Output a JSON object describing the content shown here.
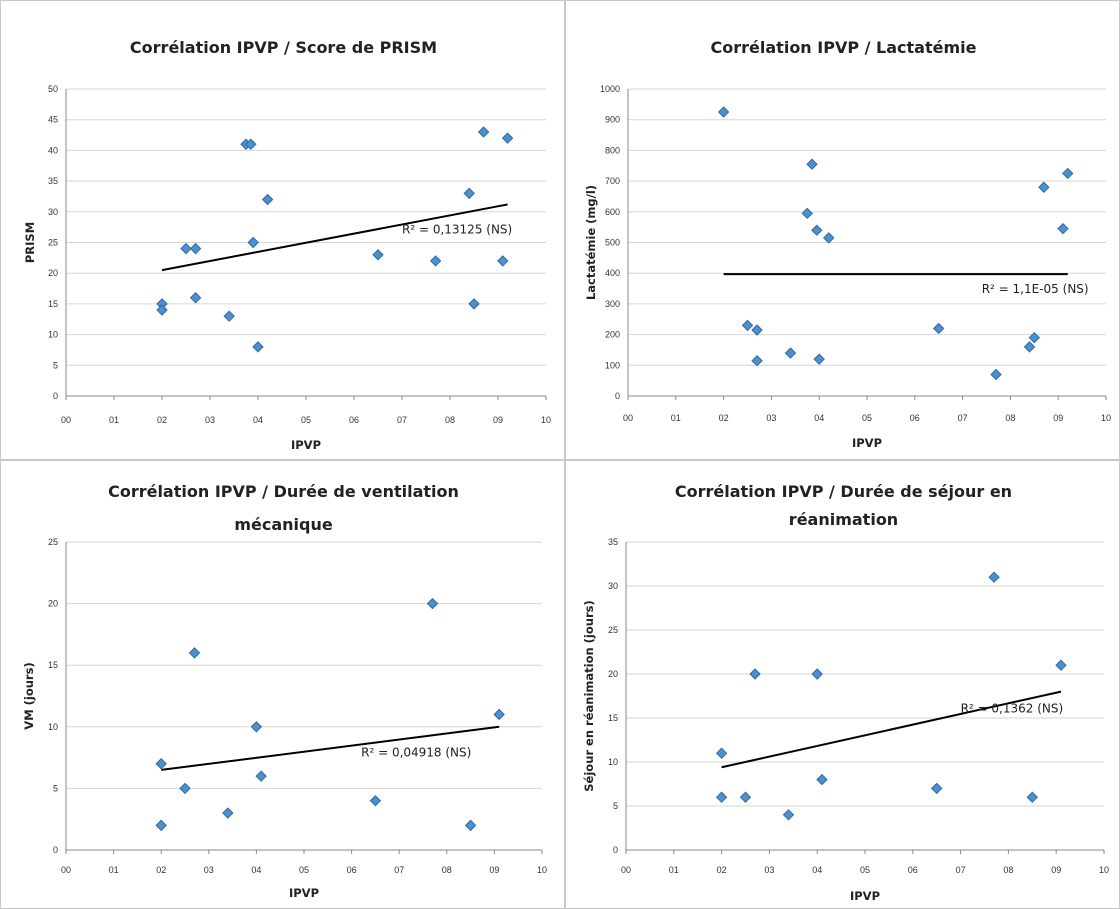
{
  "colors": {
    "marker": "#4f8fcf",
    "marker_edge": "#2f6aa5",
    "grid": "#d6d6d6",
    "trend": "#000000",
    "frame": "#c9c9c9"
  },
  "chart_data": [
    {
      "type": "scatter",
      "title_lines": [
        "Corrélation IPVP / Score de PRISM"
      ],
      "xlabel": "IPVP",
      "ylabel": "PRISM",
      "x_ticks": [
        "00",
        "01",
        "02",
        "03",
        "04",
        "05",
        "06",
        "07",
        "08",
        "09",
        "10"
      ],
      "y_ticks": [
        "0",
        "5",
        "10",
        "15",
        "20",
        "25",
        "30",
        "35",
        "40",
        "45",
        "50"
      ],
      "xlim": [
        0,
        1.0
      ],
      "ylim": [
        0,
        50
      ],
      "grid": true,
      "points": [
        {
          "x": 0.2,
          "y": 15
        },
        {
          "x": 0.2,
          "y": 14
        },
        {
          "x": 0.25,
          "y": 24
        },
        {
          "x": 0.27,
          "y": 24
        },
        {
          "x": 0.27,
          "y": 16
        },
        {
          "x": 0.34,
          "y": 13
        },
        {
          "x": 0.375,
          "y": 41
        },
        {
          "x": 0.385,
          "y": 41
        },
        {
          "x": 0.39,
          "y": 25
        },
        {
          "x": 0.4,
          "y": 8
        },
        {
          "x": 0.42,
          "y": 32
        },
        {
          "x": 0.65,
          "y": 23
        },
        {
          "x": 0.77,
          "y": 22
        },
        {
          "x": 0.84,
          "y": 33
        },
        {
          "x": 0.85,
          "y": 15
        },
        {
          "x": 0.87,
          "y": 43
        },
        {
          "x": 0.91,
          "y": 22
        },
        {
          "x": 0.92,
          "y": 42
        }
      ],
      "trendline": {
        "x": [
          0.2,
          0.92
        ],
        "y": [
          20.5,
          31.2
        ]
      },
      "annotation": {
        "text": "R² = 0,13125 (NS)",
        "x": 0.7,
        "y": 26.5
      }
    },
    {
      "type": "scatter",
      "title_lines": [
        "Corrélation IPVP / Lactatémie"
      ],
      "xlabel": "IPVP",
      "ylabel": "Lactatémie (mg/l)",
      "x_ticks": [
        "00",
        "01",
        "02",
        "03",
        "04",
        "05",
        "06",
        "07",
        "08",
        "09",
        "10"
      ],
      "y_ticks": [
        "0",
        "100",
        "200",
        "300",
        "400",
        "500",
        "600",
        "700",
        "800",
        "900",
        "1000"
      ],
      "xlim": [
        0,
        1.0
      ],
      "ylim": [
        0,
        1000
      ],
      "grid": true,
      "points": [
        {
          "x": 0.2,
          "y": 925
        },
        {
          "x": 0.25,
          "y": 230
        },
        {
          "x": 0.27,
          "y": 215
        },
        {
          "x": 0.27,
          "y": 115
        },
        {
          "x": 0.34,
          "y": 140
        },
        {
          "x": 0.375,
          "y": 595
        },
        {
          "x": 0.385,
          "y": 755
        },
        {
          "x": 0.395,
          "y": 540
        },
        {
          "x": 0.4,
          "y": 120
        },
        {
          "x": 0.42,
          "y": 515
        },
        {
          "x": 0.65,
          "y": 220
        },
        {
          "x": 0.77,
          "y": 70
        },
        {
          "x": 0.84,
          "y": 160
        },
        {
          "x": 0.85,
          "y": 190
        },
        {
          "x": 0.87,
          "y": 680
        },
        {
          "x": 0.91,
          "y": 545
        },
        {
          "x": 0.92,
          "y": 725
        }
      ],
      "trendline": {
        "x": [
          0.2,
          0.92
        ],
        "y": [
          397,
          397
        ]
      },
      "annotation": {
        "text": "R² = 1,1E-05 (NS)",
        "x": 0.74,
        "y": 335
      }
    },
    {
      "type": "scatter",
      "title_lines": [
        "Corrélation IPVP / Durée de ventilation",
        "mécanique"
      ],
      "xlabel": "IPVP",
      "ylabel": "VM (jours)",
      "x_ticks": [
        "00",
        "01",
        "02",
        "03",
        "04",
        "05",
        "06",
        "07",
        "08",
        "09",
        "10"
      ],
      "y_ticks": [
        "0",
        "5",
        "10",
        "15",
        "20",
        "25"
      ],
      "xlim": [
        0,
        1.0
      ],
      "ylim": [
        0,
        25
      ],
      "grid": true,
      "points": [
        {
          "x": 0.2,
          "y": 7
        },
        {
          "x": 0.2,
          "y": 2
        },
        {
          "x": 0.25,
          "y": 5
        },
        {
          "x": 0.27,
          "y": 16
        },
        {
          "x": 0.34,
          "y": 3
        },
        {
          "x": 0.4,
          "y": 10
        },
        {
          "x": 0.41,
          "y": 6
        },
        {
          "x": 0.65,
          "y": 4
        },
        {
          "x": 0.77,
          "y": 20
        },
        {
          "x": 0.85,
          "y": 2
        },
        {
          "x": 0.91,
          "y": 11
        }
      ],
      "trendline": {
        "x": [
          0.2,
          0.91
        ],
        "y": [
          6.5,
          10
        ]
      },
      "annotation": {
        "text": "R² = 0,04918 (NS)",
        "x": 0.62,
        "y": 7.6
      }
    },
    {
      "type": "scatter",
      "title_lines": [
        "Corrélation IPVP / Durée de séjour en",
        "réanimation"
      ],
      "xlabel": "IPVP",
      "ylabel": "Séjour en réanimation (jours)",
      "x_ticks": [
        "00",
        "01",
        "02",
        "03",
        "04",
        "05",
        "06",
        "07",
        "08",
        "09",
        "10"
      ],
      "y_ticks": [
        "0",
        "5",
        "10",
        "15",
        "20",
        "25",
        "30",
        "35"
      ],
      "xlim": [
        0,
        1.0
      ],
      "ylim": [
        0,
        35
      ],
      "grid": true,
      "points": [
        {
          "x": 0.2,
          "y": 11
        },
        {
          "x": 0.2,
          "y": 6
        },
        {
          "x": 0.25,
          "y": 6
        },
        {
          "x": 0.27,
          "y": 20
        },
        {
          "x": 0.34,
          "y": 4
        },
        {
          "x": 0.4,
          "y": 20
        },
        {
          "x": 0.41,
          "y": 8
        },
        {
          "x": 0.65,
          "y": 7
        },
        {
          "x": 0.77,
          "y": 31
        },
        {
          "x": 0.85,
          "y": 6
        },
        {
          "x": 0.91,
          "y": 21
        }
      ],
      "trendline": {
        "x": [
          0.2,
          0.91
        ],
        "y": [
          9.4,
          18
        ]
      },
      "annotation": {
        "text": "R² = 0,1362 (NS)",
        "x": 0.7,
        "y": 15.6
      }
    }
  ]
}
